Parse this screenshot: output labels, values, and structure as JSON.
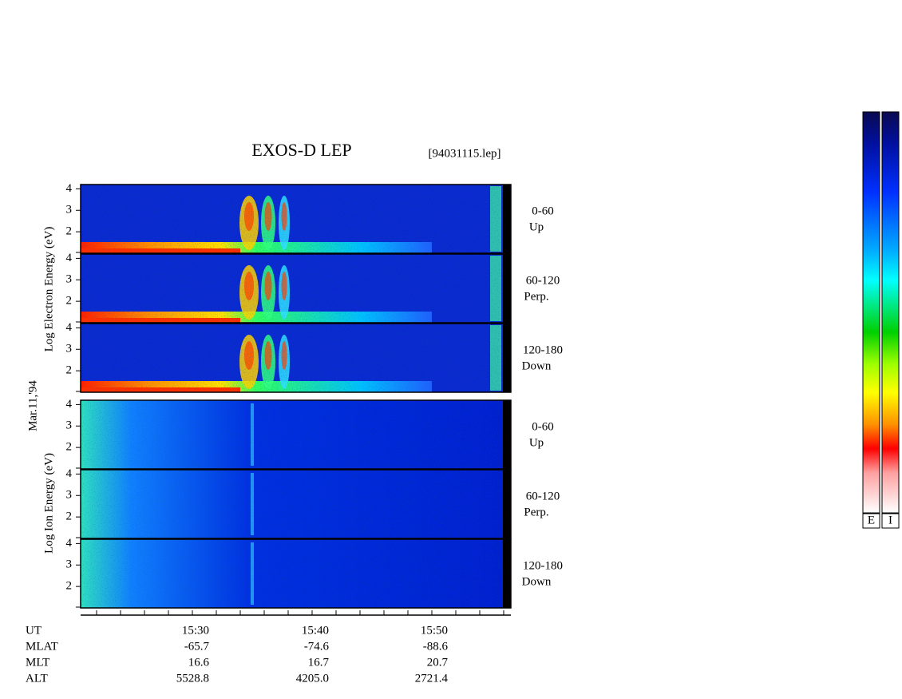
{
  "chart_data": {
    "type": "spectrogram",
    "title": "EXOS-D LEP",
    "file_label": "[94031115.lep]",
    "date_label": "Mar.11,'94",
    "ylim": [
      1,
      4.2
    ],
    "yticks": [
      2,
      3,
      4
    ],
    "groups": [
      {
        "ylabel": "Log  Electron  Energy (eV)",
        "species": "electron",
        "panels": [
          {
            "angle": "0-60",
            "dir": "Up"
          },
          {
            "angle": "60-120",
            "dir": "Perp."
          },
          {
            "angle": "120-180",
            "dir": "Down"
          }
        ]
      },
      {
        "ylabel": "Log  Ion  Energy (eV)",
        "species": "ion",
        "panels": [
          {
            "angle": "0-60",
            "dir": "Up"
          },
          {
            "angle": "60-120",
            "dir": "Perp."
          },
          {
            "angle": "120-180",
            "dir": "Down"
          }
        ]
      }
    ],
    "orbit_table": {
      "rows": [
        {
          "name": "UT",
          "values": [
            "15:30",
            "15:40",
            "15:50"
          ]
        },
        {
          "name": "MLAT",
          "values": [
            "-65.7",
            "-74.6",
            "-88.6"
          ]
        },
        {
          "name": "MLT",
          "values": [
            "16.6",
            "16.7",
            "20.7"
          ]
        },
        {
          "name": "ALT",
          "values": [
            "5528.8",
            "4205.0",
            "2721.4"
          ]
        }
      ]
    },
    "colorbars": [
      "E",
      "I"
    ]
  }
}
